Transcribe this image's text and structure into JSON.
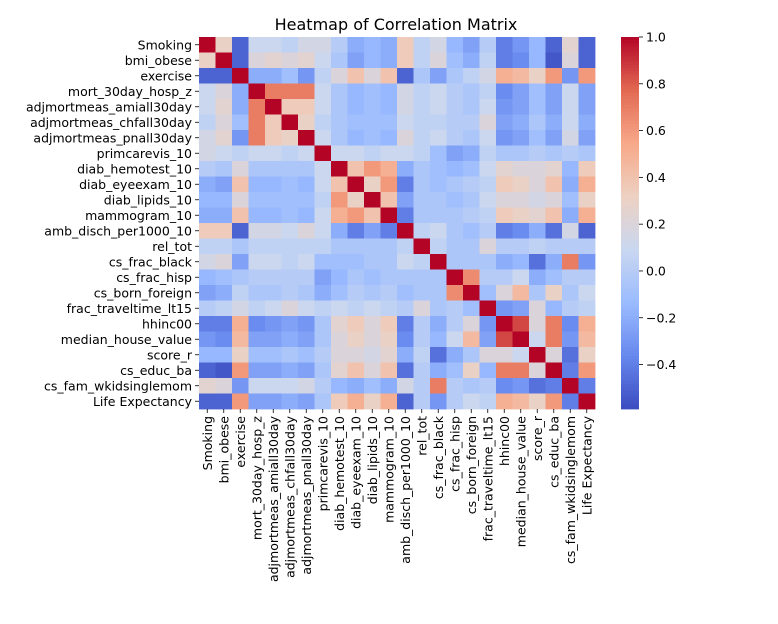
{
  "chart_data": {
    "type": "heatmap",
    "title": "Heatmap of Correlation Matrix",
    "xlabel": "",
    "ylabel": "",
    "colormap": "coolwarm",
    "colormap_anchors": [
      "#3b4cc0",
      "#6788ee",
      "#9abbff",
      "#c9d7f0",
      "#edd1c2",
      "#f7a889",
      "#e26952",
      "#b40426"
    ],
    "vmin": -0.59,
    "vmax": 1.0,
    "colorbar_ticks": [
      1.0,
      0.8,
      0.6,
      0.4,
      0.2,
      0.0,
      -0.2,
      -0.4
    ],
    "colorbar_tick_labels": [
      "1.0",
      "0.8",
      "0.6",
      "0.4",
      "0.2",
      "0.0",
      "−0.2",
      "−0.4"
    ],
    "labels": [
      "Smoking",
      "bmi_obese",
      "exercise",
      "mort_30day_hosp_z",
      "adjmortmeas_amiall30day",
      "adjmortmeas_chfall30day",
      "adjmortmeas_pnall30day",
      "primcarevis_10",
      "diab_hemotest_10",
      "diab_eyeexam_10",
      "diab_lipids_10",
      "mammogram_10",
      "amb_disch_per1000_10",
      "rel_tot",
      "cs_frac_black",
      "cs_frac_hisp",
      "cs_born_foreign",
      "frac_traveltime_lt15",
      "hhinc00",
      "median_house_value",
      "score_r",
      "cs_educ_ba",
      "cs_fam_wkidsinglemom",
      "Life Expectancy"
    ],
    "matrix": [
      [
        1.0,
        0.3,
        -0.5,
        0.1,
        0.1,
        0.05,
        0.15,
        0.15,
        0.0,
        -0.2,
        -0.15,
        -0.2,
        0.35,
        0.05,
        0.15,
        -0.15,
        -0.25,
        0.0,
        -0.4,
        -0.3,
        -0.15,
        -0.5,
        0.25,
        -0.5
      ],
      [
        0.3,
        1.0,
        -0.5,
        0.2,
        0.25,
        0.2,
        0.25,
        0.1,
        -0.05,
        -0.25,
        -0.15,
        -0.2,
        0.35,
        0.05,
        0.2,
        -0.1,
        -0.2,
        0.05,
        -0.4,
        -0.35,
        -0.15,
        -0.55,
        0.2,
        -0.5
      ],
      [
        -0.5,
        -0.5,
        1.0,
        -0.2,
        -0.2,
        -0.1,
        -0.3,
        0.05,
        0.2,
        0.4,
        0.2,
        0.4,
        -0.5,
        -0.05,
        -0.25,
        -0.05,
        0.05,
        0.15,
        0.5,
        0.45,
        0.3,
        0.6,
        -0.3,
        0.6
      ],
      [
        0.1,
        0.2,
        -0.2,
        1.0,
        0.7,
        0.7,
        0.7,
        0.1,
        -0.05,
        -0.15,
        -0.1,
        -0.15,
        0.15,
        0.05,
        0.1,
        0.0,
        -0.05,
        0.05,
        -0.35,
        -0.25,
        -0.1,
        -0.25,
        0.1,
        -0.25
      ],
      [
        0.1,
        0.25,
        -0.2,
        0.7,
        1.0,
        0.35,
        0.35,
        0.1,
        -0.05,
        -0.15,
        -0.1,
        -0.15,
        0.15,
        0.05,
        0.1,
        0.0,
        -0.05,
        0.1,
        -0.3,
        -0.25,
        -0.1,
        -0.25,
        0.1,
        -0.25
      ],
      [
        0.05,
        0.2,
        -0.1,
        0.7,
        0.35,
        1.0,
        0.3,
        0.05,
        -0.05,
        -0.1,
        -0.1,
        -0.1,
        0.1,
        0.05,
        0.05,
        0.0,
        0.0,
        0.2,
        -0.25,
        -0.2,
        -0.05,
        -0.2,
        0.1,
        -0.2
      ],
      [
        0.15,
        0.25,
        -0.3,
        0.7,
        0.35,
        0.3,
        1.0,
        0.1,
        -0.05,
        -0.15,
        -0.1,
        -0.15,
        0.2,
        0.05,
        0.1,
        0.0,
        -0.05,
        0.1,
        -0.3,
        -0.25,
        -0.1,
        -0.25,
        0.15,
        -0.25
      ],
      [
        0.15,
        0.1,
        0.05,
        0.1,
        0.1,
        0.05,
        0.1,
        1.0,
        0.1,
        0.1,
        0.05,
        0.1,
        0.1,
        0.05,
        -0.1,
        -0.25,
        -0.2,
        0.05,
        -0.05,
        -0.05,
        0.0,
        -0.05,
        0.0,
        -0.05
      ],
      [
        0.0,
        -0.05,
        0.2,
        -0.05,
        -0.05,
        -0.05,
        -0.05,
        0.1,
        1.0,
        0.4,
        0.6,
        0.5,
        -0.2,
        -0.05,
        -0.1,
        -0.15,
        -0.1,
        0.1,
        0.25,
        0.2,
        0.2,
        0.25,
        -0.15,
        0.35
      ],
      [
        -0.2,
        -0.25,
        0.4,
        -0.15,
        -0.15,
        -0.1,
        -0.15,
        0.1,
        0.4,
        1.0,
        0.3,
        0.6,
        -0.4,
        -0.05,
        -0.1,
        -0.05,
        0.0,
        0.05,
        0.35,
        0.3,
        0.2,
        0.4,
        -0.2,
        0.5
      ],
      [
        -0.15,
        -0.15,
        0.2,
        -0.1,
        -0.1,
        -0.1,
        -0.1,
        0.05,
        0.6,
        0.3,
        1.0,
        0.4,
        -0.25,
        -0.05,
        -0.05,
        -0.1,
        -0.05,
        0.1,
        0.2,
        0.2,
        0.15,
        0.2,
        -0.1,
        0.3
      ],
      [
        -0.2,
        -0.2,
        0.4,
        -0.15,
        -0.15,
        -0.1,
        -0.15,
        0.1,
        0.5,
        0.6,
        0.4,
        1.0,
        -0.4,
        -0.05,
        -0.05,
        -0.05,
        0.0,
        0.05,
        0.35,
        0.3,
        0.25,
        0.4,
        -0.2,
        0.5
      ],
      [
        0.35,
        0.35,
        -0.5,
        0.15,
        0.15,
        0.1,
        0.2,
        0.1,
        -0.2,
        -0.4,
        -0.25,
        -0.4,
        1.0,
        0.05,
        0.1,
        -0.05,
        -0.1,
        0.0,
        -0.4,
        -0.35,
        -0.2,
        -0.45,
        0.15,
        -0.5
      ],
      [
        0.05,
        0.05,
        -0.05,
        0.05,
        0.05,
        0.05,
        0.05,
        0.05,
        -0.05,
        -0.05,
        -0.05,
        -0.05,
        0.05,
        1.0,
        0.05,
        -0.05,
        -0.05,
        0.2,
        0.0,
        0.0,
        0.05,
        0.0,
        0.0,
        0.0
      ],
      [
        0.15,
        0.2,
        -0.25,
        0.1,
        0.1,
        0.05,
        0.1,
        -0.1,
        -0.1,
        -0.1,
        -0.05,
        -0.05,
        0.1,
        0.05,
        1.0,
        -0.05,
        -0.05,
        -0.05,
        -0.2,
        -0.15,
        -0.45,
        -0.2,
        0.7,
        -0.3
      ],
      [
        -0.15,
        -0.1,
        -0.05,
        0.0,
        0.0,
        0.0,
        0.0,
        -0.25,
        -0.15,
        -0.05,
        -0.1,
        -0.05,
        -0.05,
        -0.05,
        -0.05,
        1.0,
        0.65,
        0.0,
        0.0,
        0.1,
        -0.2,
        -0.1,
        0.0,
        0.0
      ],
      [
        -0.25,
        -0.2,
        0.05,
        -0.05,
        -0.05,
        0.0,
        -0.05,
        -0.2,
        -0.1,
        0.0,
        -0.05,
        0.0,
        -0.1,
        -0.05,
        -0.05,
        0.65,
        1.0,
        -0.1,
        0.2,
        0.45,
        -0.05,
        0.3,
        -0.05,
        0.1
      ],
      [
        0.0,
        0.05,
        0.15,
        0.05,
        0.1,
        0.2,
        0.1,
        0.05,
        0.1,
        0.05,
        0.1,
        0.05,
        0.0,
        0.2,
        -0.05,
        0.0,
        -0.1,
        1.0,
        -0.3,
        -0.25,
        0.2,
        -0.15,
        0.0,
        0.05
      ],
      [
        -0.4,
        -0.4,
        0.5,
        -0.35,
        -0.3,
        -0.25,
        -0.3,
        -0.05,
        0.25,
        0.35,
        0.2,
        0.35,
        -0.4,
        0.0,
        -0.2,
        0.0,
        0.2,
        -0.3,
        1.0,
        0.85,
        0.2,
        0.7,
        -0.35,
        0.5
      ],
      [
        -0.3,
        -0.35,
        0.45,
        -0.25,
        -0.25,
        -0.2,
        -0.25,
        -0.05,
        0.2,
        0.3,
        0.2,
        0.3,
        -0.35,
        0.0,
        -0.15,
        0.1,
        0.45,
        -0.25,
        0.85,
        1.0,
        0.1,
        0.7,
        -0.3,
        0.45
      ],
      [
        -0.15,
        -0.15,
        0.3,
        -0.1,
        -0.1,
        -0.05,
        -0.1,
        0.0,
        0.2,
        0.2,
        0.15,
        0.25,
        -0.2,
        0.05,
        -0.45,
        -0.2,
        -0.05,
        0.2,
        0.2,
        0.1,
        1.0,
        0.2,
        -0.45,
        0.3
      ],
      [
        -0.5,
        -0.55,
        0.6,
        -0.25,
        -0.25,
        -0.2,
        -0.25,
        -0.05,
        0.25,
        0.4,
        0.2,
        0.4,
        -0.45,
        0.0,
        -0.2,
        -0.1,
        0.3,
        -0.15,
        0.7,
        0.7,
        0.2,
        1.0,
        -0.4,
        0.6
      ],
      [
        0.25,
        0.2,
        -0.3,
        0.1,
        0.1,
        0.1,
        0.15,
        0.0,
        -0.15,
        -0.2,
        -0.1,
        -0.2,
        0.15,
        0.0,
        0.7,
        0.0,
        -0.05,
        0.0,
        -0.35,
        -0.3,
        -0.45,
        -0.4,
        1.0,
        -0.4
      ],
      [
        -0.5,
        -0.5,
        0.6,
        -0.25,
        -0.25,
        -0.2,
        -0.25,
        -0.05,
        0.35,
        0.5,
        0.3,
        0.5,
        -0.5,
        0.0,
        -0.3,
        0.0,
        0.1,
        0.05,
        0.5,
        0.45,
        0.3,
        0.6,
        -0.4,
        1.0
      ]
    ]
  }
}
